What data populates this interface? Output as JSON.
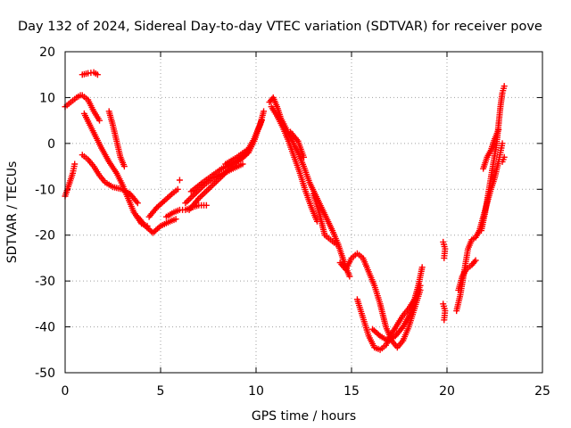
{
  "chart_data": {
    "type": "scatter",
    "title": "Day 132 of 2024, Sidereal Day-to-day VTEC variation (SDTVAR) for receiver pove",
    "xlabel": "GPS time / hours",
    "ylabel": "SDTVAR / TECUs",
    "xlim": [
      0,
      25
    ],
    "ylim": [
      -50,
      20
    ],
    "xticks": [
      0,
      5,
      10,
      15,
      20,
      25
    ],
    "yticks": [
      -50,
      -40,
      -30,
      -20,
      -10,
      0,
      10,
      20
    ],
    "grid": true,
    "marker": "+",
    "series": [
      {
        "name": "SDTVAR",
        "color": "#ff0000",
        "segments": [
          [
            [
              0.0,
              -11.5
            ],
            [
              0.2,
              -9.0
            ],
            [
              0.4,
              -6.5
            ],
            [
              0.5,
              -4.5
            ]
          ],
          [
            [
              0.0,
              8.0
            ],
            [
              0.3,
              9.0
            ],
            [
              0.6,
              10.0
            ],
            [
              0.8,
              10.5
            ]
          ],
          [
            [
              0.9,
              15.0
            ],
            [
              1.2,
              15.3
            ],
            [
              1.5,
              15.5
            ],
            [
              1.7,
              15.0
            ]
          ],
          [
            [
              0.9,
              10.5
            ],
            [
              1.2,
              9.5
            ],
            [
              1.5,
              7.0
            ],
            [
              1.8,
              5.0
            ]
          ],
          [
            [
              0.9,
              -2.5
            ],
            [
              1.2,
              -3.5
            ],
            [
              1.5,
              -5.0
            ],
            [
              1.8,
              -7.0
            ],
            [
              2.1,
              -8.5
            ],
            [
              2.5,
              -9.5
            ],
            [
              3.0,
              -10.0
            ],
            [
              3.4,
              -11.0
            ],
            [
              3.8,
              -13.0
            ]
          ],
          [
            [
              1.0,
              6.5
            ],
            [
              1.3,
              4.0
            ],
            [
              1.6,
              1.5
            ],
            [
              1.9,
              -1.0
            ],
            [
              2.3,
              -4.0
            ],
            [
              2.7,
              -6.5
            ],
            [
              3.0,
              -9.0
            ],
            [
              3.3,
              -12.0
            ],
            [
              3.6,
              -15.0
            ],
            [
              4.0,
              -17.5
            ],
            [
              4.3,
              -18.0
            ]
          ],
          [
            [
              2.3,
              7.0
            ],
            [
              2.5,
              4.0
            ],
            [
              2.7,
              0.5
            ],
            [
              2.9,
              -3.0
            ],
            [
              3.1,
              -5.0
            ]
          ],
          [
            [
              3.8,
              -16.0
            ],
            [
              4.2,
              -18.0
            ],
            [
              4.6,
              -19.5
            ],
            [
              5.0,
              -18.0
            ],
            [
              5.5,
              -17.0
            ],
            [
              5.8,
              -16.5
            ]
          ],
          [
            [
              4.4,
              -16.0
            ],
            [
              4.8,
              -14.0
            ],
            [
              5.2,
              -12.5
            ],
            [
              5.6,
              -11.0
            ],
            [
              5.9,
              -10.0
            ]
          ],
          [
            [
              5.3,
              -16.0
            ],
            [
              5.7,
              -15.0
            ],
            [
              6.0,
              -14.5
            ],
            [
              6.3,
              -14.5
            ],
            [
              6.6,
              -14.0
            ],
            [
              7.0,
              -13.5
            ],
            [
              7.4,
              -13.5
            ]
          ],
          [
            [
              6.0,
              -8.0
            ]
          ],
          [
            [
              6.3,
              -13.0
            ],
            [
              6.8,
              -11.0
            ],
            [
              7.3,
              -9.0
            ],
            [
              7.8,
              -7.5
            ],
            [
              8.3,
              -6.5
            ],
            [
              8.8,
              -5.5
            ],
            [
              9.3,
              -4.5
            ]
          ],
          [
            [
              6.5,
              -14.5
            ],
            [
              7.0,
              -12.0
            ],
            [
              7.5,
              -10.0
            ],
            [
              8.0,
              -8.0
            ],
            [
              8.5,
              -6.0
            ],
            [
              9.0,
              -4.0
            ],
            [
              9.5,
              -2.0
            ],
            [
              9.9,
              1.0
            ],
            [
              10.2,
              4.0
            ],
            [
              10.4,
              7.0
            ]
          ],
          [
            [
              6.6,
              -10.5
            ],
            [
              7.2,
              -8.5
            ],
            [
              7.7,
              -7.0
            ],
            [
              8.2,
              -5.5
            ],
            [
              8.7,
              -4.5
            ],
            [
              9.2,
              -3.5
            ],
            [
              9.6,
              -2.0
            ],
            [
              9.9,
              0.5
            ],
            [
              10.1,
              3.0
            ],
            [
              10.3,
              5.0
            ]
          ],
          [
            [
              8.4,
              -4.5
            ],
            [
              9.0,
              -3.0
            ],
            [
              9.5,
              -1.5
            ]
          ],
          [
            [
              10.7,
              9.0
            ],
            [
              10.9,
              10.0
            ],
            [
              11.1,
              8.0
            ],
            [
              11.3,
              5.5
            ],
            [
              11.6,
              3.0
            ],
            [
              11.9,
              0.5
            ],
            [
              12.2,
              -2.0
            ],
            [
              12.5,
              -5.0
            ],
            [
              12.8,
              -8.5
            ],
            [
              13.2,
              -12.0
            ],
            [
              13.6,
              -15.5
            ],
            [
              14.0,
              -19.0
            ],
            [
              14.3,
              -22.0
            ],
            [
              14.5,
              -24.5
            ],
            [
              14.7,
              -27.0
            ],
            [
              14.9,
              -29.0
            ]
          ],
          [
            [
              10.8,
              8.0
            ],
            [
              11.1,
              6.0
            ],
            [
              11.4,
              3.5
            ],
            [
              11.7,
              0.5
            ],
            [
              12.0,
              -3.0
            ],
            [
              12.3,
              -6.5
            ],
            [
              12.6,
              -10.5
            ],
            [
              12.9,
              -14.0
            ],
            [
              13.2,
              -17.0
            ]
          ],
          [
            [
              11.8,
              2.5
            ],
            [
              12.2,
              0.5
            ],
            [
              12.5,
              -3.0
            ]
          ],
          [
            [
              13.0,
              -11.0
            ],
            [
              13.3,
              -15.0
            ],
            [
              13.6,
              -20.0
            ],
            [
              13.9,
              -21.0
            ],
            [
              14.2,
              -22.0
            ]
          ],
          [
            [
              14.4,
              -26.0
            ],
            [
              14.7,
              -27.5
            ],
            [
              15.0,
              -25.0
            ],
            [
              15.3,
              -24.0
            ],
            [
              15.6,
              -25.0
            ],
            [
              15.9,
              -28.0
            ],
            [
              16.2,
              -31.0
            ],
            [
              16.5,
              -35.0
            ],
            [
              16.8,
              -40.0
            ],
            [
              17.1,
              -43.0
            ],
            [
              17.4,
              -44.5
            ],
            [
              17.7,
              -43.0
            ],
            [
              18.0,
              -40.0
            ],
            [
              18.3,
              -36.0
            ],
            [
              18.6,
              -32.0
            ]
          ],
          [
            [
              15.3,
              -34.0
            ],
            [
              15.6,
              -38.0
            ],
            [
              15.9,
              -42.0
            ],
            [
              16.2,
              -44.5
            ],
            [
              16.5,
              -45.0
            ],
            [
              16.8,
              -44.0
            ],
            [
              17.1,
              -41.5
            ],
            [
              17.4,
              -39.5
            ],
            [
              17.7,
              -37.5
            ],
            [
              18.0,
              -36.0
            ],
            [
              18.3,
              -34.0
            ],
            [
              18.6,
              -31.0
            ]
          ],
          [
            [
              16.1,
              -40.5
            ],
            [
              16.5,
              -42.0
            ],
            [
              16.9,
              -43.0
            ],
            [
              17.3,
              -42.0
            ],
            [
              17.7,
              -40.0
            ],
            [
              18.1,
              -37.0
            ],
            [
              18.5,
              -31.0
            ],
            [
              18.7,
              -27.0
            ]
          ],
          [
            [
              19.8,
              -21.5
            ],
            [
              19.9,
              -23.0
            ],
            [
              19.85,
              -25.0
            ]
          ],
          [
            [
              19.8,
              -35.0
            ],
            [
              19.9,
              -36.5
            ],
            [
              19.85,
              -38.5
            ]
          ],
          [
            [
              20.5,
              -36.5
            ],
            [
              20.7,
              -33.0
            ],
            [
              20.9,
              -28.0
            ],
            [
              21.1,
              -23.0
            ],
            [
              21.3,
              -21.0
            ],
            [
              21.5,
              -20.5
            ],
            [
              21.7,
              -19.0
            ],
            [
              21.9,
              -16.0
            ],
            [
              22.1,
              -13.0
            ],
            [
              22.3,
              -10.0
            ],
            [
              22.5,
              -7.5
            ],
            [
              22.7,
              -4.0
            ],
            [
              22.8,
              -2.0
            ],
            [
              22.9,
              0.0
            ]
          ],
          [
            [
              20.6,
              -32.0
            ],
            [
              20.8,
              -29.0
            ],
            [
              21.0,
              -27.5
            ],
            [
              21.3,
              -26.5
            ],
            [
              21.5,
              -25.5
            ]
          ],
          [
            [
              21.8,
              -19.0
            ],
            [
              22.0,
              -15.0
            ],
            [
              22.2,
              -10.0
            ],
            [
              22.4,
              -5.0
            ],
            [
              22.6,
              0.0
            ],
            [
              22.7,
              4.0
            ],
            [
              22.8,
              8.0
            ],
            [
              22.9,
              11.0
            ],
            [
              23.0,
              12.5
            ]
          ],
          [
            [
              21.9,
              -5.5
            ],
            [
              22.1,
              -3.0
            ],
            [
              22.3,
              -1.5
            ],
            [
              22.5,
              1.0
            ],
            [
              22.7,
              3.0
            ]
          ],
          [
            [
              22.9,
              -4.0
            ],
            [
              23.0,
              -3.0
            ]
          ]
        ]
      }
    ]
  }
}
